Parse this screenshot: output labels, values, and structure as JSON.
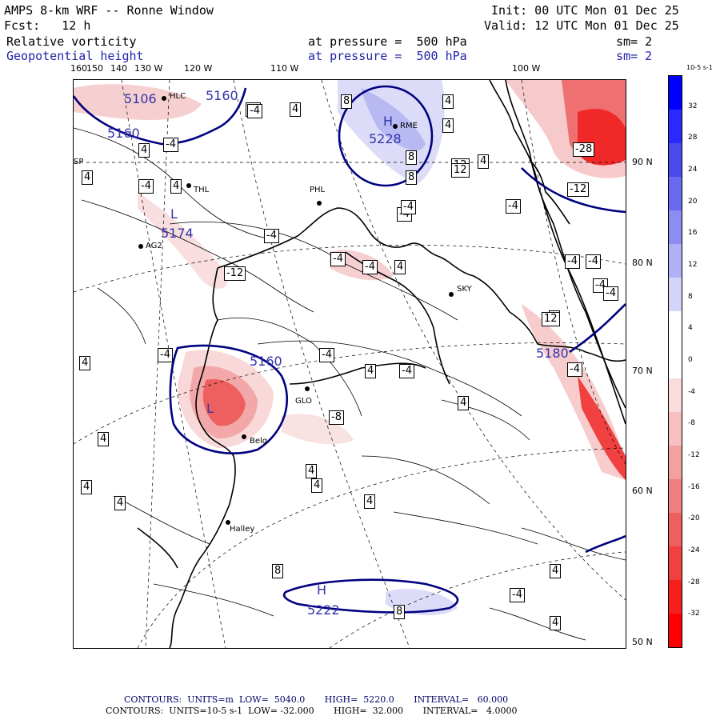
{
  "header": {
    "title": "AMPS 8-km WRF -- Ronne Window",
    "init": "Init: 00 UTC Mon 01 Dec 25",
    "fcst": "Fcst:   12 h",
    "valid": "Valid: 12 UTC Mon 01 Dec 25",
    "field1": {
      "name": "Relative vorticity",
      "pressure": "at pressure =  500 hPa",
      "sm": "sm= 2"
    },
    "field2": {
      "name": "Geopotential height",
      "pressure": "at pressure =  500 hPa",
      "sm": "sm= 2"
    }
  },
  "lon_labels": [
    "160",
    "150",
    "140",
    "130 W",
    "120 W",
    "110 W",
    "100 W"
  ],
  "lat_labels": [
    "90 N",
    "80 N",
    "70 N",
    "60 N",
    "50 N"
  ],
  "stations": [
    "HLC",
    "THL",
    "AG2",
    "PHL",
    "RME",
    "SKY",
    "GLO",
    "Belg",
    "Halley",
    "SP"
  ],
  "height_labels": [
    "5106",
    "5160",
    "5160",
    "5174",
    "5160",
    "5228",
    "5222",
    "5180"
  ],
  "pressure_centers": [
    "L",
    "H",
    "L",
    "H"
  ],
  "vort_labels": [
    "4",
    "-4",
    "8",
    "-4",
    "4",
    "4",
    "-4",
    "4",
    "8",
    "12",
    "8",
    "12",
    "4",
    "-28",
    "-12",
    "-4",
    "4",
    "4",
    "-4",
    "-4",
    "-4",
    "-4",
    "4",
    "-4",
    "-4",
    "-12",
    "-8",
    "4",
    "-4",
    "-4",
    "-4",
    "-4",
    "-4",
    "4",
    "-4",
    "4",
    "-4",
    "4",
    "4",
    "4",
    "4",
    "4",
    "4",
    "4",
    "8",
    "4",
    "-4",
    "4",
    "12",
    "-4",
    "8"
  ],
  "colorbar": {
    "unit": "10-5 s-1",
    "ticks": [
      "32",
      "28",
      "24",
      "20",
      "16",
      "12",
      "8",
      "4",
      "0",
      "-4",
      "-8",
      "-12",
      "-16",
      "-20",
      "-24",
      "-28",
      "-32"
    ],
    "colors": [
      "#0000ff",
      "#2a2aff",
      "#4a4aee",
      "#6a6af0",
      "#8c8cf2",
      "#b0b0f6",
      "#d4d4fa",
      "#ffffff",
      "#ffffff",
      "#fadcdc",
      "#f6c0c0",
      "#f2a0a0",
      "#f08080",
      "#ee6060",
      "#f04040",
      "#f42020",
      "#ff0000"
    ]
  },
  "footer": {
    "line1": "CONTOURS:  UNITS=m  LOW=  5040.0       HIGH=  5220.0       INTERVAL=   60.000",
    "line2": "CONTOURS:  UNITS=10-5 s-1  LOW= -32.000       HIGH=  32.000       INTERVAL=   4.0000"
  }
}
